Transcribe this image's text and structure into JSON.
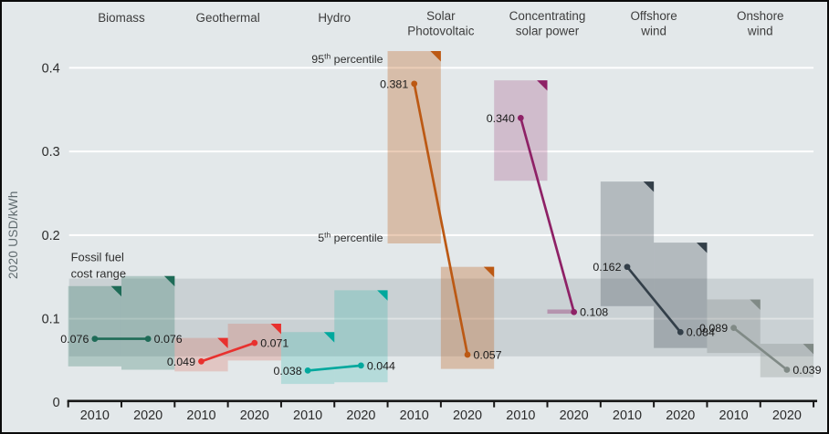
{
  "figure": {
    "background": "#e3e8ea",
    "border_color": "#0b0b0b",
    "gridline_color": "#ffffff",
    "axis_color": "#161616",
    "tick_text_color": "#2b2b2b",
    "header_text_color": "#3d3d3d",
    "value_label_color": "#1a1a1a",
    "annotation_text_color": "#2e2e2e"
  },
  "y_axis": {
    "title": "2020 USD/kWh",
    "tick_labels": [
      "0",
      "0.1",
      "0.2",
      "0.3",
      "0.4"
    ],
    "tick_values": [
      0,
      0.1,
      0.2,
      0.3,
      0.4
    ]
  },
  "annotations": {
    "fossil_band_label_line1": "Fossil fuel",
    "fossil_band_label_line2": "cost range",
    "p95": {
      "num": "95",
      "sup": "th",
      "rest": " percentile"
    },
    "p5": {
      "num": "5",
      "sup": "th",
      "rest": " percentile"
    }
  },
  "chart_data": {
    "type": "dumbbell-range",
    "title": "",
    "ylabel": "2020 USD/kWh",
    "ylim": [
      0,
      0.45
    ],
    "grid": "horizontal-white",
    "x_group_labels": [
      "2010",
      "2020"
    ],
    "fossil_fuel_cost_range": [
      0.055,
      0.148
    ],
    "fossil_band_fill": "rgba(125,136,142,0.24)",
    "band_meaning": [
      "5th percentile",
      "95th percentile"
    ],
    "technologies": [
      {
        "key": "biomass",
        "name": "Biomass",
        "header_lines": [
          "Biomass"
        ],
        "color": "#1e6b57",
        "fill": "rgba(30,107,87,0.26)",
        "lcoe_2010": 0.076,
        "lcoe_2020": 0.076,
        "band_2010": [
          0.043,
          0.139
        ],
        "band_2020": [
          0.039,
          0.151
        ],
        "tri_2010": true,
        "tri_2020": true
      },
      {
        "key": "geothermal",
        "name": "Geothermal",
        "header_lines": [
          "Geothermal"
        ],
        "color": "#e8312e",
        "fill": "rgba(220,90,70,0.24)",
        "lcoe_2010": 0.049,
        "lcoe_2020": 0.071,
        "band_2010": [
          0.037,
          0.077
        ],
        "band_2020": [
          0.05,
          0.094
        ],
        "tri_2010": true,
        "tri_2020": true
      },
      {
        "key": "hydro",
        "name": "Hydro",
        "header_lines": [
          "Hydro"
        ],
        "color": "#00a89d",
        "fill": "rgba(0,168,157,0.20)",
        "lcoe_2010": 0.038,
        "lcoe_2020": 0.044,
        "band_2010": [
          0.022,
          0.084
        ],
        "band_2020": [
          0.024,
          0.134
        ],
        "tri_2010": true,
        "tri_2020": true
      },
      {
        "key": "solar-pv",
        "name": "Solar Photovoltaic",
        "header_lines": [
          "Solar",
          "Photovoltaic"
        ],
        "color": "#bc5914",
        "fill": "rgba(188,89,20,0.30)",
        "lcoe_2010": 0.381,
        "lcoe_2020": 0.057,
        "band_2010": [
          0.19,
          0.42
        ],
        "band_2020": [
          0.04,
          0.162
        ],
        "tri_2010": true,
        "tri_2020": true,
        "percentile_labels": true
      },
      {
        "key": "csp",
        "name": "Concentrating solar power",
        "header_lines": [
          "Concentrating",
          "solar power"
        ],
        "color": "#8e2166",
        "fill": "rgba(142,33,102,0.22)",
        "lcoe_2010": 0.34,
        "lcoe_2020": 0.108,
        "band_2010": [
          0.265,
          0.385
        ],
        "band_2020": [
          0.106,
          0.111
        ],
        "tri_2010": true,
        "tri_2020": false,
        "band_2020_half_width": true,
        "band_2020_fill": "rgba(142,33,102,0.35)"
      },
      {
        "key": "offshore-wind",
        "name": "Offshore wind",
        "header_lines": [
          "Offshore",
          "wind"
        ],
        "color": "#333f49",
        "fill": "rgba(51,63,73,0.27)",
        "lcoe_2010": 0.162,
        "lcoe_2020": 0.084,
        "band_2010": [
          0.115,
          0.264
        ],
        "band_2020": [
          0.065,
          0.191
        ],
        "tri_2010": true,
        "tri_2020": true
      },
      {
        "key": "onshore-wind",
        "name": "Onshore wind",
        "header_lines": [
          "Onshore",
          "wind"
        ],
        "color": "#808a86",
        "fill": "rgba(110,121,116,0.25)",
        "lcoe_2010": 0.089,
        "lcoe_2020": 0.039,
        "band_2010": [
          0.059,
          0.123
        ],
        "band_2020": [
          0.03,
          0.07
        ],
        "tri_2010": true,
        "tri_2020": true
      }
    ]
  }
}
